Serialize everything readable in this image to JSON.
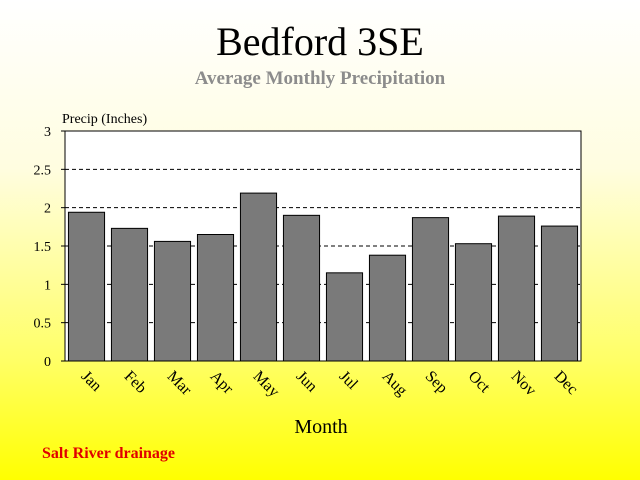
{
  "title": "Bedford 3SE",
  "subtitle": "Average Monthly Precipitation",
  "footnote": "Salt River drainage",
  "colors": {
    "bar_fill": "#7a7a7a",
    "bar_stroke": "#000000",
    "plot_background": "#ffffff",
    "footnote": "#e00000",
    "subtitle": "#8c8c8c"
  },
  "chart_data": {
    "type": "bar",
    "title": "Bedford 3SE",
    "subtitle": "Average Monthly Precipitation",
    "xlabel": "Month",
    "ylabel": "Precip (Inches)",
    "categories": [
      "Jan",
      "Feb",
      "Mar",
      "Apr",
      "May",
      "Jun",
      "Jul",
      "Aug",
      "Sep",
      "Oct",
      "Nov",
      "Dec"
    ],
    "values": [
      1.94,
      1.73,
      1.56,
      1.65,
      2.19,
      1.9,
      1.15,
      1.38,
      1.87,
      1.53,
      1.89,
      1.76
    ],
    "ylim": [
      0,
      3
    ],
    "yticks": [
      "0",
      "0.5",
      "1",
      "1.5",
      "2",
      "2.5",
      "3"
    ],
    "grid": "horizontal dashed",
    "legend": "none"
  }
}
